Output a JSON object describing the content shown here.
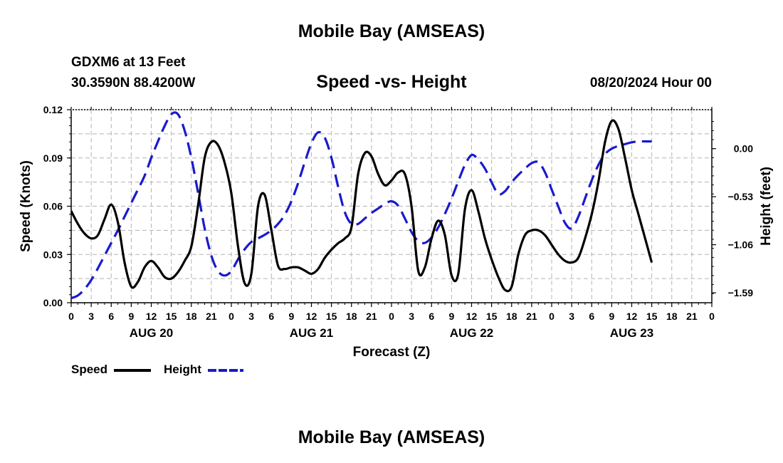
{
  "page": {
    "title": "Mobile Bay (AMSEAS)",
    "title_repeat": "Mobile Bay (AMSEAS)",
    "station": "GDXM6 at 13 Feet",
    "coords": "30.3590N  88.4200W",
    "subtitle": "Speed -vs- Height",
    "datetime": "08/20/2024 Hour 00"
  },
  "legend": [
    {
      "label": "Speed",
      "color": "#000000",
      "style": "solid"
    },
    {
      "label": "Height",
      "color": "#1a1acc",
      "style": "dashed"
    }
  ],
  "chart_data": {
    "type": "line",
    "xlabel": "Forecast (Z)",
    "ylabel": "Speed (Knots)",
    "y2label": "Height (feet)",
    "xlim": [
      0,
      96
    ],
    "ylim": [
      0,
      0.12
    ],
    "y2lim": [
      -1.7,
      0.43
    ],
    "x_tick_labels": [
      "0",
      "3",
      "6",
      "9",
      "12",
      "15",
      "18",
      "21",
      "0",
      "3",
      "6",
      "9",
      "12",
      "15",
      "18",
      "21",
      "0",
      "3",
      "6",
      "9",
      "12",
      "15",
      "18",
      "21",
      "0",
      "3",
      "6",
      "9",
      "12",
      "15",
      "18",
      "21",
      "0"
    ],
    "day_labels": [
      {
        "x": 12,
        "label": "AUG 20"
      },
      {
        "x": 36,
        "label": "AUG 21"
      },
      {
        "x": 60,
        "label": "AUG 22"
      },
      {
        "x": 84,
        "label": "AUG 23"
      }
    ],
    "y_ticks": [
      "0.00",
      "0.03",
      "0.06",
      "0.09",
      "0.12"
    ],
    "y2_ticks": [
      {
        "value": 0.0,
        "label": "0.00"
      },
      {
        "value": -0.53,
        "label": "−0.53"
      },
      {
        "value": -1.06,
        "label": "−1.06"
      },
      {
        "value": -1.59,
        "label": "−1.59"
      }
    ],
    "grid": true,
    "series": [
      {
        "name": "Speed",
        "axis": "left",
        "color": "#000000",
        "dash": "solid",
        "points": [
          [
            0,
            0.057
          ],
          [
            1,
            0.049
          ],
          [
            2,
            0.043
          ],
          [
            3,
            0.04
          ],
          [
            4,
            0.042
          ],
          [
            5,
            0.052
          ],
          [
            6,
            0.061
          ],
          [
            7,
            0.05
          ],
          [
            8,
            0.025
          ],
          [
            9,
            0.01
          ],
          [
            10,
            0.013
          ],
          [
            11,
            0.022
          ],
          [
            12,
            0.026
          ],
          [
            13,
            0.022
          ],
          [
            14,
            0.016
          ],
          [
            15,
            0.015
          ],
          [
            16,
            0.019
          ],
          [
            17,
            0.026
          ],
          [
            18,
            0.035
          ],
          [
            19,
            0.06
          ],
          [
            20,
            0.09
          ],
          [
            21,
            0.1
          ],
          [
            22,
            0.098
          ],
          [
            23,
            0.087
          ],
          [
            24,
            0.068
          ],
          [
            25,
            0.035
          ],
          [
            26,
            0.012
          ],
          [
            27,
            0.018
          ],
          [
            28,
            0.06
          ],
          [
            29,
            0.067
          ],
          [
            30,
            0.045
          ],
          [
            31,
            0.023
          ],
          [
            32,
            0.021
          ],
          [
            33,
            0.022
          ],
          [
            34,
            0.022
          ],
          [
            35,
            0.02
          ],
          [
            36,
            0.018
          ],
          [
            37,
            0.021
          ],
          [
            38,
            0.028
          ],
          [
            39,
            0.033
          ],
          [
            40,
            0.037
          ],
          [
            41,
            0.04
          ],
          [
            42,
            0.047
          ],
          [
            43,
            0.08
          ],
          [
            44,
            0.093
          ],
          [
            45,
            0.091
          ],
          [
            46,
            0.08
          ],
          [
            47,
            0.073
          ],
          [
            48,
            0.076
          ],
          [
            49,
            0.081
          ],
          [
            50,
            0.08
          ],
          [
            51,
            0.06
          ],
          [
            52,
            0.02
          ],
          [
            53,
            0.022
          ],
          [
            54,
            0.04
          ],
          [
            55,
            0.051
          ],
          [
            56,
            0.042
          ],
          [
            57,
            0.017
          ],
          [
            58,
            0.018
          ],
          [
            59,
            0.058
          ],
          [
            60,
            0.07
          ],
          [
            61,
            0.057
          ],
          [
            62,
            0.04
          ],
          [
            63,
            0.027
          ],
          [
            64,
            0.016
          ],
          [
            65,
            0.008
          ],
          [
            66,
            0.01
          ],
          [
            67,
            0.03
          ],
          [
            68,
            0.042
          ],
          [
            69,
            0.045
          ],
          [
            70,
            0.045
          ],
          [
            71,
            0.042
          ],
          [
            72,
            0.036
          ],
          [
            73,
            0.03
          ],
          [
            74,
            0.026
          ],
          [
            75,
            0.025
          ],
          [
            76,
            0.028
          ],
          [
            77,
            0.04
          ],
          [
            78,
            0.055
          ],
          [
            79,
            0.075
          ],
          [
            80,
            0.1
          ],
          [
            81,
            0.113
          ],
          [
            82,
            0.108
          ],
          [
            83,
            0.09
          ],
          [
            84,
            0.07
          ],
          [
            85,
            0.055
          ],
          [
            86,
            0.04
          ],
          [
            87,
            0.025
          ]
        ]
      },
      {
        "name": "Height",
        "axis": "right",
        "color": "#1a1acc",
        "dash": "dashed",
        "points": [
          [
            0,
            -1.65
          ],
          [
            1,
            -1.62
          ],
          [
            2,
            -1.55
          ],
          [
            3,
            -1.45
          ],
          [
            4,
            -1.32
          ],
          [
            5,
            -1.18
          ],
          [
            6,
            -1.04
          ],
          [
            7,
            -0.9
          ],
          [
            8,
            -0.75
          ],
          [
            9,
            -0.6
          ],
          [
            10,
            -0.45
          ],
          [
            11,
            -0.3
          ],
          [
            12,
            -0.1
          ],
          [
            13,
            0.08
          ],
          [
            14,
            0.25
          ],
          [
            15,
            0.38
          ],
          [
            16,
            0.38
          ],
          [
            17,
            0.2
          ],
          [
            18,
            -0.1
          ],
          [
            19,
            -0.48
          ],
          [
            20,
            -0.88
          ],
          [
            21,
            -1.18
          ],
          [
            22,
            -1.35
          ],
          [
            23,
            -1.4
          ],
          [
            24,
            -1.35
          ],
          [
            25,
            -1.22
          ],
          [
            26,
            -1.11
          ],
          [
            27,
            -1.03
          ],
          [
            28,
            -0.99
          ],
          [
            29,
            -0.95
          ],
          [
            30,
            -0.9
          ],
          [
            31,
            -0.83
          ],
          [
            32,
            -0.73
          ],
          [
            33,
            -0.58
          ],
          [
            34,
            -0.38
          ],
          [
            35,
            -0.15
          ],
          [
            36,
            0.06
          ],
          [
            37,
            0.18
          ],
          [
            38,
            0.12
          ],
          [
            39,
            -0.1
          ],
          [
            40,
            -0.42
          ],
          [
            41,
            -0.7
          ],
          [
            42,
            -0.83
          ],
          [
            43,
            -0.83
          ],
          [
            44,
            -0.77
          ],
          [
            45,
            -0.71
          ],
          [
            46,
            -0.66
          ],
          [
            47,
            -0.61
          ],
          [
            48,
            -0.58
          ],
          [
            49,
            -0.63
          ],
          [
            50,
            -0.77
          ],
          [
            51,
            -0.92
          ],
          [
            52,
            -1.02
          ],
          [
            53,
            -1.04
          ],
          [
            54,
            -0.98
          ],
          [
            55,
            -0.87
          ],
          [
            56,
            -0.72
          ],
          [
            57,
            -0.55
          ],
          [
            58,
            -0.36
          ],
          [
            59,
            -0.18
          ],
          [
            60,
            -0.07
          ],
          [
            61,
            -0.12
          ],
          [
            62,
            -0.22
          ],
          [
            63,
            -0.37
          ],
          [
            64,
            -0.5
          ],
          [
            65,
            -0.47
          ],
          [
            66,
            -0.37
          ],
          [
            67,
            -0.29
          ],
          [
            68,
            -0.22
          ],
          [
            69,
            -0.16
          ],
          [
            70,
            -0.15
          ],
          [
            71,
            -0.26
          ],
          [
            72,
            -0.45
          ],
          [
            73,
            -0.64
          ],
          [
            74,
            -0.82
          ],
          [
            75,
            -0.88
          ],
          [
            76,
            -0.75
          ],
          [
            77,
            -0.55
          ],
          [
            78,
            -0.35
          ],
          [
            79,
            -0.18
          ],
          [
            80,
            -0.06
          ],
          [
            81,
            0.0
          ],
          [
            82,
            0.03
          ],
          [
            83,
            0.05
          ],
          [
            84,
            0.07
          ],
          [
            85,
            0.08
          ],
          [
            86,
            0.08
          ],
          [
            87,
            0.08
          ]
        ]
      }
    ]
  }
}
